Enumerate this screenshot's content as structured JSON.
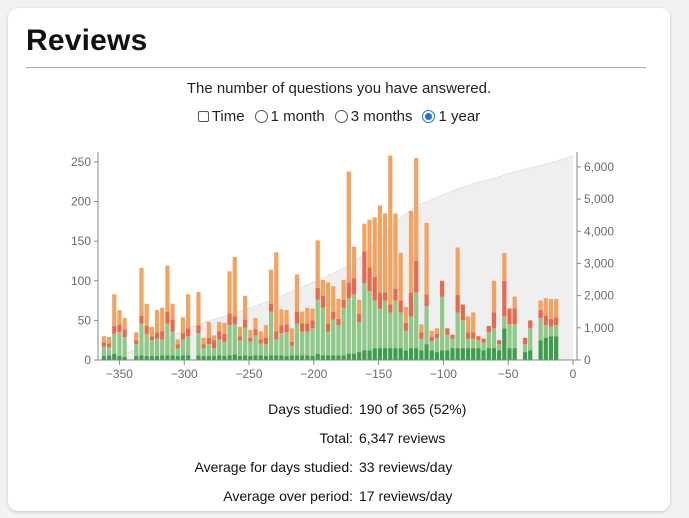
{
  "card": {
    "title": "Reviews",
    "subtitle": "The number of questions you have answered."
  },
  "controls": {
    "time_label": "Time",
    "time_checked": false,
    "ranges": [
      {
        "label": "1 month",
        "selected": false
      },
      {
        "label": "3 months",
        "selected": false
      },
      {
        "label": "1 year",
        "selected": true
      }
    ]
  },
  "colors": {
    "young": "#f3a35f",
    "learn": "#e8694b",
    "mature_light": "#8fc98a",
    "mature_dark": "#3c9d4a",
    "cumulative_fill": "#ececec"
  },
  "chart_data": {
    "type": "bar",
    "xlabel": "",
    "ylabel": "",
    "xlim": [
      -365,
      0
    ],
    "ylim": [
      0,
      260
    ],
    "y2lim": [
      0,
      6400
    ],
    "x_ticks": [
      "−350",
      "−300",
      "−250",
      "−200",
      "−150",
      "−100",
      "−50",
      "0"
    ],
    "y_ticks": [
      "0",
      "50",
      "100",
      "150",
      "200",
      "250"
    ],
    "y2_ticks": [
      "0",
      "1,000",
      "2,000",
      "3,000",
      "4,000",
      "5,000",
      "6,000"
    ],
    "series": [
      {
        "stack": [
          "dark",
          "light",
          "red",
          "orange"
        ]
      }
    ],
    "bars": [
      {
        "x": -362,
        "v": [
          5,
          12,
          5,
          8
        ]
      },
      {
        "x": -358,
        "v": [
          6,
          10,
          5,
          8
        ]
      },
      {
        "x": -354,
        "v": [
          8,
          25,
          10,
          40
        ]
      },
      {
        "x": -350,
        "v": [
          5,
          30,
          10,
          18
        ]
      },
      {
        "x": -346,
        "v": [
          4,
          25,
          10,
          14
        ]
      },
      {
        "x": -337,
        "v": [
          5,
          15,
          5,
          10
        ]
      },
      {
        "x": -333,
        "v": [
          6,
          40,
          10,
          60
        ]
      },
      {
        "x": -329,
        "v": [
          5,
          28,
          10,
          28
        ]
      },
      {
        "x": -325,
        "v": [
          5,
          20,
          5,
          12
        ]
      },
      {
        "x": -321,
        "v": [
          5,
          22,
          8,
          28
        ]
      },
      {
        "x": -317,
        "v": [
          6,
          20,
          10,
          30
        ]
      },
      {
        "x": -313,
        "v": [
          6,
          40,
          15,
          58
        ]
      },
      {
        "x": -309,
        "v": [
          6,
          30,
          15,
          20
        ]
      },
      {
        "x": -305,
        "v": [
          5,
          10,
          5,
          6
        ]
      },
      {
        "x": -301,
        "v": [
          6,
          20,
          8,
          20
        ]
      },
      {
        "x": -297,
        "v": [
          6,
          24,
          10,
          43
        ]
      },
      {
        "x": -289,
        "v": [
          6,
          28,
          10,
          42
        ]
      },
      {
        "x": -285,
        "v": [
          5,
          10,
          5,
          8
        ]
      },
      {
        "x": -281,
        "v": [
          5,
          15,
          8,
          20
        ]
      },
      {
        "x": -277,
        "v": [
          5,
          10,
          10,
          6
        ]
      },
      {
        "x": -273,
        "v": [
          6,
          20,
          10,
          12
        ]
      },
      {
        "x": -269,
        "v": [
          5,
          18,
          10,
          14
        ]
      },
      {
        "x": -265,
        "v": [
          6,
          38,
          15,
          53
        ]
      },
      {
        "x": -261,
        "v": [
          7,
          38,
          10,
          75
        ]
      },
      {
        "x": -257,
        "v": [
          5,
          20,
          5,
          12
        ]
      },
      {
        "x": -253,
        "v": [
          6,
          35,
          10,
          30
        ]
      },
      {
        "x": -249,
        "v": [
          5,
          18,
          5,
          10
        ]
      },
      {
        "x": -245,
        "v": [
          6,
          25,
          8,
          14
        ]
      },
      {
        "x": -241,
        "v": [
          6,
          15,
          5,
          10
        ]
      },
      {
        "x": -237,
        "v": [
          5,
          15,
          8,
          16
        ]
      },
      {
        "x": -233,
        "v": [
          6,
          55,
          10,
          43
        ]
      },
      {
        "x": -229,
        "v": [
          6,
          20,
          10,
          100
        ]
      },
      {
        "x": -225,
        "v": [
          6,
          28,
          10,
          20
        ]
      },
      {
        "x": -221,
        "v": [
          5,
          30,
          10,
          18
        ]
      },
      {
        "x": -217,
        "v": [
          6,
          12,
          5,
          17
        ]
      },
      {
        "x": -213,
        "v": [
          6,
          40,
          15,
          47
        ]
      },
      {
        "x": -209,
        "v": [
          6,
          30,
          10,
          15
        ]
      },
      {
        "x": -205,
        "v": [
          6,
          30,
          10,
          20
        ]
      },
      {
        "x": -201,
        "v": [
          5,
          35,
          10,
          15
        ]
      },
      {
        "x": -197,
        "v": [
          8,
          68,
          15,
          60
        ]
      },
      {
        "x": -193,
        "v": [
          6,
          60,
          15,
          20
        ]
      },
      {
        "x": -189,
        "v": [
          6,
          30,
          10,
          52
        ]
      },
      {
        "x": -185,
        "v": [
          6,
          45,
          10,
          32
        ]
      },
      {
        "x": -181,
        "v": [
          6,
          38,
          8,
          25
        ]
      },
      {
        "x": -177,
        "v": [
          6,
          60,
          10,
          25
        ]
      },
      {
        "x": -173,
        "v": [
          8,
          70,
          20,
          140
        ]
      },
      {
        "x": -169,
        "v": [
          8,
          75,
          20,
          40
        ]
      },
      {
        "x": -165,
        "v": [
          10,
          38,
          10,
          18
        ]
      },
      {
        "x": -161,
        "v": [
          12,
          85,
          40,
          35
        ]
      },
      {
        "x": -157,
        "v": [
          12,
          75,
          30,
          60
        ]
      },
      {
        "x": -153,
        "v": [
          15,
          60,
          30,
          75
        ]
      },
      {
        "x": -149,
        "v": [
          15,
          50,
          20,
          110
        ]
      },
      {
        "x": -145,
        "v": [
          15,
          60,
          10,
          100
        ]
      },
      {
        "x": -141,
        "v": [
          15,
          45,
          10,
          188
        ]
      },
      {
        "x": -137,
        "v": [
          15,
          60,
          15,
          95
        ]
      },
      {
        "x": -133,
        "v": [
          15,
          45,
          15,
          60
        ]
      },
      {
        "x": -129,
        "v": [
          12,
          25,
          10,
          20
        ]
      },
      {
        "x": -125,
        "v": [
          15,
          40,
          30,
          103
        ]
      },
      {
        "x": -121,
        "v": [
          15,
          70,
          40,
          130
        ]
      },
      {
        "x": -117,
        "v": [
          12,
          15,
          8,
          10
        ]
      },
      {
        "x": -113,
        "v": [
          20,
          48,
          15,
          90
        ]
      },
      {
        "x": -109,
        "v": [
          12,
          12,
          5,
          8
        ]
      },
      {
        "x": -105,
        "v": [
          10,
          18,
          5,
          7
        ]
      },
      {
        "x": -101,
        "v": [
          12,
          68,
          20,
          0
        ]
      },
      {
        "x": -97,
        "v": [
          12,
          20,
          8,
          0
        ]
      },
      {
        "x": -93,
        "v": [
          15,
          12,
          5,
          0
        ]
      },
      {
        "x": -89,
        "v": [
          15,
          45,
          22,
          60
        ]
      },
      {
        "x": -85,
        "v": [
          15,
          35,
          20,
          0
        ]
      },
      {
        "x": -81,
        "v": [
          15,
          12,
          8,
          20
        ]
      },
      {
        "x": -77,
        "v": [
          15,
          12,
          8,
          25
        ]
      },
      {
        "x": -73,
        "v": [
          15,
          10,
          5,
          0
        ]
      },
      {
        "x": -69,
        "v": [
          12,
          10,
          5,
          0
        ]
      },
      {
        "x": -65,
        "v": [
          15,
          20,
          8,
          0
        ]
      },
      {
        "x": -61,
        "v": [
          15,
          25,
          20,
          40
        ]
      },
      {
        "x": -57,
        "v": [
          12,
          8,
          5,
          0
        ]
      },
      {
        "x": -53,
        "v": [
          40,
          15,
          45,
          35
        ]
      },
      {
        "x": -49,
        "v": [
          15,
          30,
          20,
          0
        ]
      },
      {
        "x": -45,
        "v": [
          15,
          30,
          20,
          15
        ]
      },
      {
        "x": -37,
        "v": [
          10,
          10,
          8,
          0
        ]
      },
      {
        "x": -33,
        "v": [
          12,
          28,
          10,
          0
        ]
      },
      {
        "x": -25,
        "v": [
          25,
          28,
          10,
          12
        ]
      },
      {
        "x": -21,
        "v": [
          28,
          16,
          12,
          22
        ]
      },
      {
        "x": -17,
        "v": [
          30,
          12,
          10,
          25
        ]
      },
      {
        "x": -13,
        "v": [
          30,
          14,
          10,
          23
        ]
      }
    ],
    "cumulative": [
      [
        -365,
        0
      ],
      [
        -350,
        120
      ],
      [
        -330,
        450
      ],
      [
        -310,
        750
      ],
      [
        -290,
        1100
      ],
      [
        -270,
        1350
      ],
      [
        -250,
        1600
      ],
      [
        -230,
        1900
      ],
      [
        -210,
        2250
      ],
      [
        -190,
        2600
      ],
      [
        -170,
        3000
      ],
      [
        -150,
        3700
      ],
      [
        -135,
        4350
      ],
      [
        -120,
        4800
      ],
      [
        -105,
        5050
      ],
      [
        -90,
        5300
      ],
      [
        -75,
        5500
      ],
      [
        -60,
        5650
      ],
      [
        -45,
        5850
      ],
      [
        -30,
        6000
      ],
      [
        -15,
        6150
      ],
      [
        0,
        6347
      ]
    ]
  },
  "stats": [
    {
      "label": "Days studied:",
      "value": "190 of 365 (52%)"
    },
    {
      "label": "Total:",
      "value": "6,347 reviews"
    },
    {
      "label": "Average for days studied:",
      "value": "33 reviews/day"
    },
    {
      "label": "Average over period:",
      "value": "17 reviews/day"
    }
  ]
}
